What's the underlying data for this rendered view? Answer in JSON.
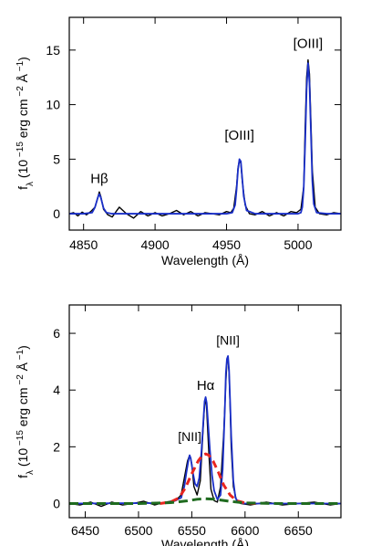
{
  "chart_data": [
    {
      "type": "line",
      "xlabel": "Wavelength (Å)",
      "ylabel": "f_λ (10^{-15} erg cm^{-2} Å^{-1})",
      "xlim": [
        4840,
        5030
      ],
      "ylim": [
        -1.5,
        18
      ],
      "xticks": [
        4850,
        4900,
        4950,
        5000
      ],
      "xtick_labels": [
        "4850",
        "4900",
        "4950",
        "5000"
      ],
      "yticks": [
        0,
        5,
        10,
        15
      ],
      "ytick_labels": [
        "0",
        "5",
        "10",
        "15"
      ],
      "grid": false,
      "annotations": [
        {
          "text": "Hβ",
          "x": 4861,
          "y": 2.8
        },
        {
          "text": "[OIII]",
          "x": 4959,
          "y": 6.8
        },
        {
          "text": "[OIII]",
          "x": 5007,
          "y": 15.2
        }
      ],
      "series": [
        {
          "color": "#000000",
          "role": "observed",
          "x": [
            4840,
            4843,
            4846,
            4849,
            4852,
            4855,
            4858,
            4860,
            4861,
            4862,
            4864,
            4867,
            4870,
            4875,
            4880,
            4885,
            4890,
            4895,
            4900,
            4905,
            4910,
            4915,
            4920,
            4925,
            4930,
            4935,
            4940,
            4945,
            4950,
            4953,
            4955,
            4957,
            4958,
            4959,
            4960,
            4961,
            4963,
            4966,
            4970,
            4975,
            4980,
            4985,
            4990,
            4995,
            4999,
            5002,
            5004,
            5005,
            5006,
            5007,
            5008,
            5009,
            5010,
            5012,
            5015,
            5020,
            5025,
            5030
          ],
          "values": [
            0.0,
            0.1,
            -0.2,
            0.15,
            -0.1,
            0.2,
            0.6,
            1.5,
            2.0,
            1.6,
            0.4,
            -0.1,
            -0.3,
            0.6,
            0.0,
            -0.4,
            0.2,
            -0.2,
            0.1,
            -0.2,
            0.0,
            0.3,
            -0.1,
            0.2,
            -0.2,
            0.1,
            0.0,
            -0.1,
            0.2,
            0.1,
            0.5,
            2.5,
            4.2,
            4.9,
            4.6,
            3.0,
            0.8,
            0.0,
            -0.1,
            0.2,
            -0.2,
            0.1,
            -0.2,
            0.2,
            0.1,
            0.4,
            2.5,
            8.0,
            12.5,
            14.1,
            12.8,
            8.5,
            4.0,
            0.6,
            0.0,
            -0.1,
            0.1,
            0.0
          ]
        },
        {
          "color": "#1a2fc8",
          "role": "fit",
          "x": [
            4840,
            4850,
            4856,
            4858,
            4860,
            4861,
            4862,
            4864,
            4866,
            4870,
            4880,
            4890,
            4900,
            4910,
            4920,
            4930,
            4940,
            4950,
            4954,
            4956,
            4957,
            4958,
            4959,
            4960,
            4961,
            4962,
            4964,
            4970,
            4980,
            4990,
            5000,
            5002,
            5003,
            5004,
            5005,
            5006,
            5007,
            5008,
            5009,
            5010,
            5011,
            5013,
            5020,
            5030
          ],
          "values": [
            0.0,
            0.0,
            0.1,
            0.6,
            1.5,
            1.8,
            1.5,
            0.5,
            0.1,
            0.0,
            0.0,
            0.0,
            0.0,
            0.0,
            0.0,
            0.0,
            0.0,
            0.0,
            0.1,
            0.8,
            2.2,
            4.0,
            5.0,
            4.8,
            3.2,
            1.6,
            0.3,
            0.0,
            0.0,
            0.0,
            0.0,
            0.1,
            0.6,
            2.4,
            6.5,
            11.5,
            13.8,
            12.0,
            7.5,
            3.0,
            0.9,
            0.1,
            0.0,
            0.0
          ]
        }
      ]
    },
    {
      "type": "line",
      "xlabel": "Wavelength (Å)",
      "ylabel": "f_λ (10^{-15} erg cm^{-2} Å^{-1})",
      "xlim": [
        6435,
        6690
      ],
      "ylim": [
        -0.5,
        7
      ],
      "xticks": [
        6450,
        6500,
        6550,
        6600,
        6650
      ],
      "xtick_labels": [
        "6450",
        "6500",
        "6550",
        "6600",
        "6650"
      ],
      "yticks": [
        0,
        2,
        4,
        6
      ],
      "ytick_labels": [
        "0",
        "2",
        "4",
        "6"
      ],
      "grid": false,
      "annotations": [
        {
          "text": "[NII]",
          "x": 6548,
          "y": 2.2
        },
        {
          "text": "Hα",
          "x": 6563,
          "y": 4.0
        },
        {
          "text": "[NII]",
          "x": 6584,
          "y": 5.6
        }
      ],
      "series": [
        {
          "color": "#000000",
          "role": "observed",
          "x": [
            6435,
            6445,
            6455,
            6465,
            6475,
            6485,
            6495,
            6505,
            6515,
            6525,
            6535,
            6540,
            6543,
            6546,
            6548,
            6550,
            6552,
            6555,
            6558,
            6560,
            6562,
            6563,
            6564,
            6566,
            6568,
            6571,
            6574,
            6577,
            6580,
            6582,
            6583,
            6584,
            6585,
            6586,
            6587,
            6589,
            6592,
            6596,
            6605,
            6620,
            6635,
            6650,
            6665,
            6680,
            6690
          ],
          "values": [
            0.0,
            -0.05,
            0.05,
            -0.1,
            0.05,
            -0.05,
            0.0,
            0.08,
            -0.05,
            0.05,
            0.1,
            0.3,
            0.9,
            1.5,
            1.7,
            1.4,
            0.6,
            0.3,
            0.8,
            2.2,
            3.5,
            3.7,
            3.3,
            1.8,
            0.5,
            0.1,
            0.05,
            0.6,
            2.5,
            4.3,
            5.0,
            5.1,
            4.6,
            3.4,
            2.0,
            0.6,
            0.1,
            0.0,
            -0.05,
            0.05,
            -0.05,
            0.0,
            0.05,
            -0.05,
            0.0
          ]
        },
        {
          "color": "#1a2fc8",
          "role": "fit",
          "x": [
            6435,
            6530,
            6540,
            6543,
            6545,
            6547,
            6548,
            6549,
            6551,
            6553,
            6555,
            6557,
            6559,
            6561,
            6562,
            6563,
            6564,
            6565,
            6567,
            6569,
            6571,
            6574,
            6577,
            6579,
            6581,
            6582,
            6583,
            6584,
            6585,
            6586,
            6587,
            6589,
            6591,
            6594,
            6600,
            6690
          ],
          "values": [
            0.0,
            0.02,
            0.2,
            0.6,
            1.1,
            1.55,
            1.7,
            1.6,
            1.1,
            0.7,
            0.6,
            0.9,
            1.8,
            3.0,
            3.6,
            3.75,
            3.55,
            3.0,
            1.9,
            1.0,
            0.45,
            0.15,
            0.3,
            1.2,
            3.3,
            4.6,
            5.1,
            5.2,
            4.7,
            3.6,
            2.4,
            0.8,
            0.2,
            0.03,
            0.0,
            0.0
          ]
        },
        {
          "color": "#e8251f",
          "role": "broad component",
          "dashed": true,
          "x": [
            6520,
            6530,
            6538,
            6544,
            6550,
            6556,
            6560,
            6563,
            6566,
            6570,
            6575,
            6580,
            6586,
            6592,
            6600,
            6610
          ],
          "values": [
            0.0,
            0.05,
            0.2,
            0.55,
            1.05,
            1.5,
            1.7,
            1.75,
            1.7,
            1.5,
            1.1,
            0.65,
            0.3,
            0.1,
            0.02,
            0.0
          ]
        },
        {
          "color": "#1f6b1f",
          "role": "continuum",
          "dashed": true,
          "x": [
            6435,
            6500,
            6530,
            6545,
            6555,
            6563,
            6572,
            6585,
            6600,
            6630,
            6690
          ],
          "values": [
            0.0,
            0.0,
            0.03,
            0.09,
            0.15,
            0.17,
            0.15,
            0.08,
            0.02,
            0.0,
            0.0
          ]
        }
      ]
    }
  ]
}
